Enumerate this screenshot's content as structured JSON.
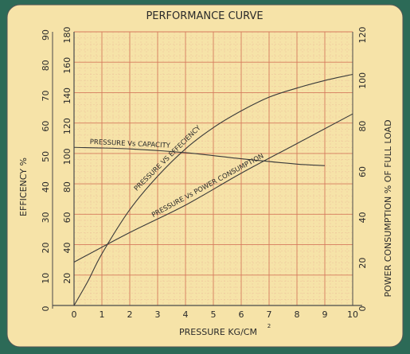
{
  "chart_data": {
    "type": "line",
    "title": "PERFORMANCE CURVE",
    "xlabel": "PRESSURE KG/CM",
    "xlabel_superscript": "2",
    "x_ticks": [
      "0",
      "1",
      "2",
      "3",
      "4",
      "5",
      "6",
      "7",
      "8",
      "9",
      "10"
    ],
    "xlim": [
      0,
      10
    ],
    "y_left_outer": {
      "label": "EFFICENCY %",
      "ticks": [
        "0",
        "10",
        "20",
        "30",
        "40",
        "50",
        "60",
        "70",
        "80",
        "90"
      ],
      "ylim": [
        0,
        90
      ]
    },
    "y_left_inner": {
      "label": "",
      "ticks": [
        "20",
        "40",
        "60",
        "80",
        "100",
        "120",
        "140",
        "160",
        "180"
      ],
      "ylim": [
        0,
        180
      ]
    },
    "y_right": {
      "label": "POWER CONSUMPTION % OF FULL LOAD",
      "ticks": [
        "0",
        "20",
        "40",
        "60",
        "80",
        "100",
        "120"
      ],
      "ylim": [
        0,
        120
      ]
    },
    "series": [
      {
        "name": "PRESSURE VS EFFECIENCY",
        "axis": "left_inner",
        "x": [
          0,
          0.5,
          1,
          2,
          3,
          4,
          5,
          6,
          7,
          8,
          9,
          10
        ],
        "values": [
          0,
          16,
          34,
          63,
          85,
          103,
          117,
          128,
          137,
          143,
          148,
          152
        ]
      },
      {
        "name": "PRESSURE Vs CAPACITY",
        "axis": "left_inner",
        "x": [
          0,
          2,
          4,
          6,
          8,
          9
        ],
        "values": [
          104,
          103,
          100.5,
          96.5,
          93,
          92
        ]
      },
      {
        "name": "PRESSURE Vs POWER CONSUMPTION",
        "axis": "right",
        "x": [
          0,
          2,
          4,
          6,
          8,
          10
        ],
        "values": [
          19,
          32,
          44,
          58,
          71,
          84
        ]
      }
    ],
    "grid": true
  },
  "colors": {
    "background": "#2c6a57",
    "paper": "#f6e3a8",
    "grid_major": "#d57a5c",
    "grid_minor": "#ecc19a",
    "curve": "#3a3a3a"
  }
}
